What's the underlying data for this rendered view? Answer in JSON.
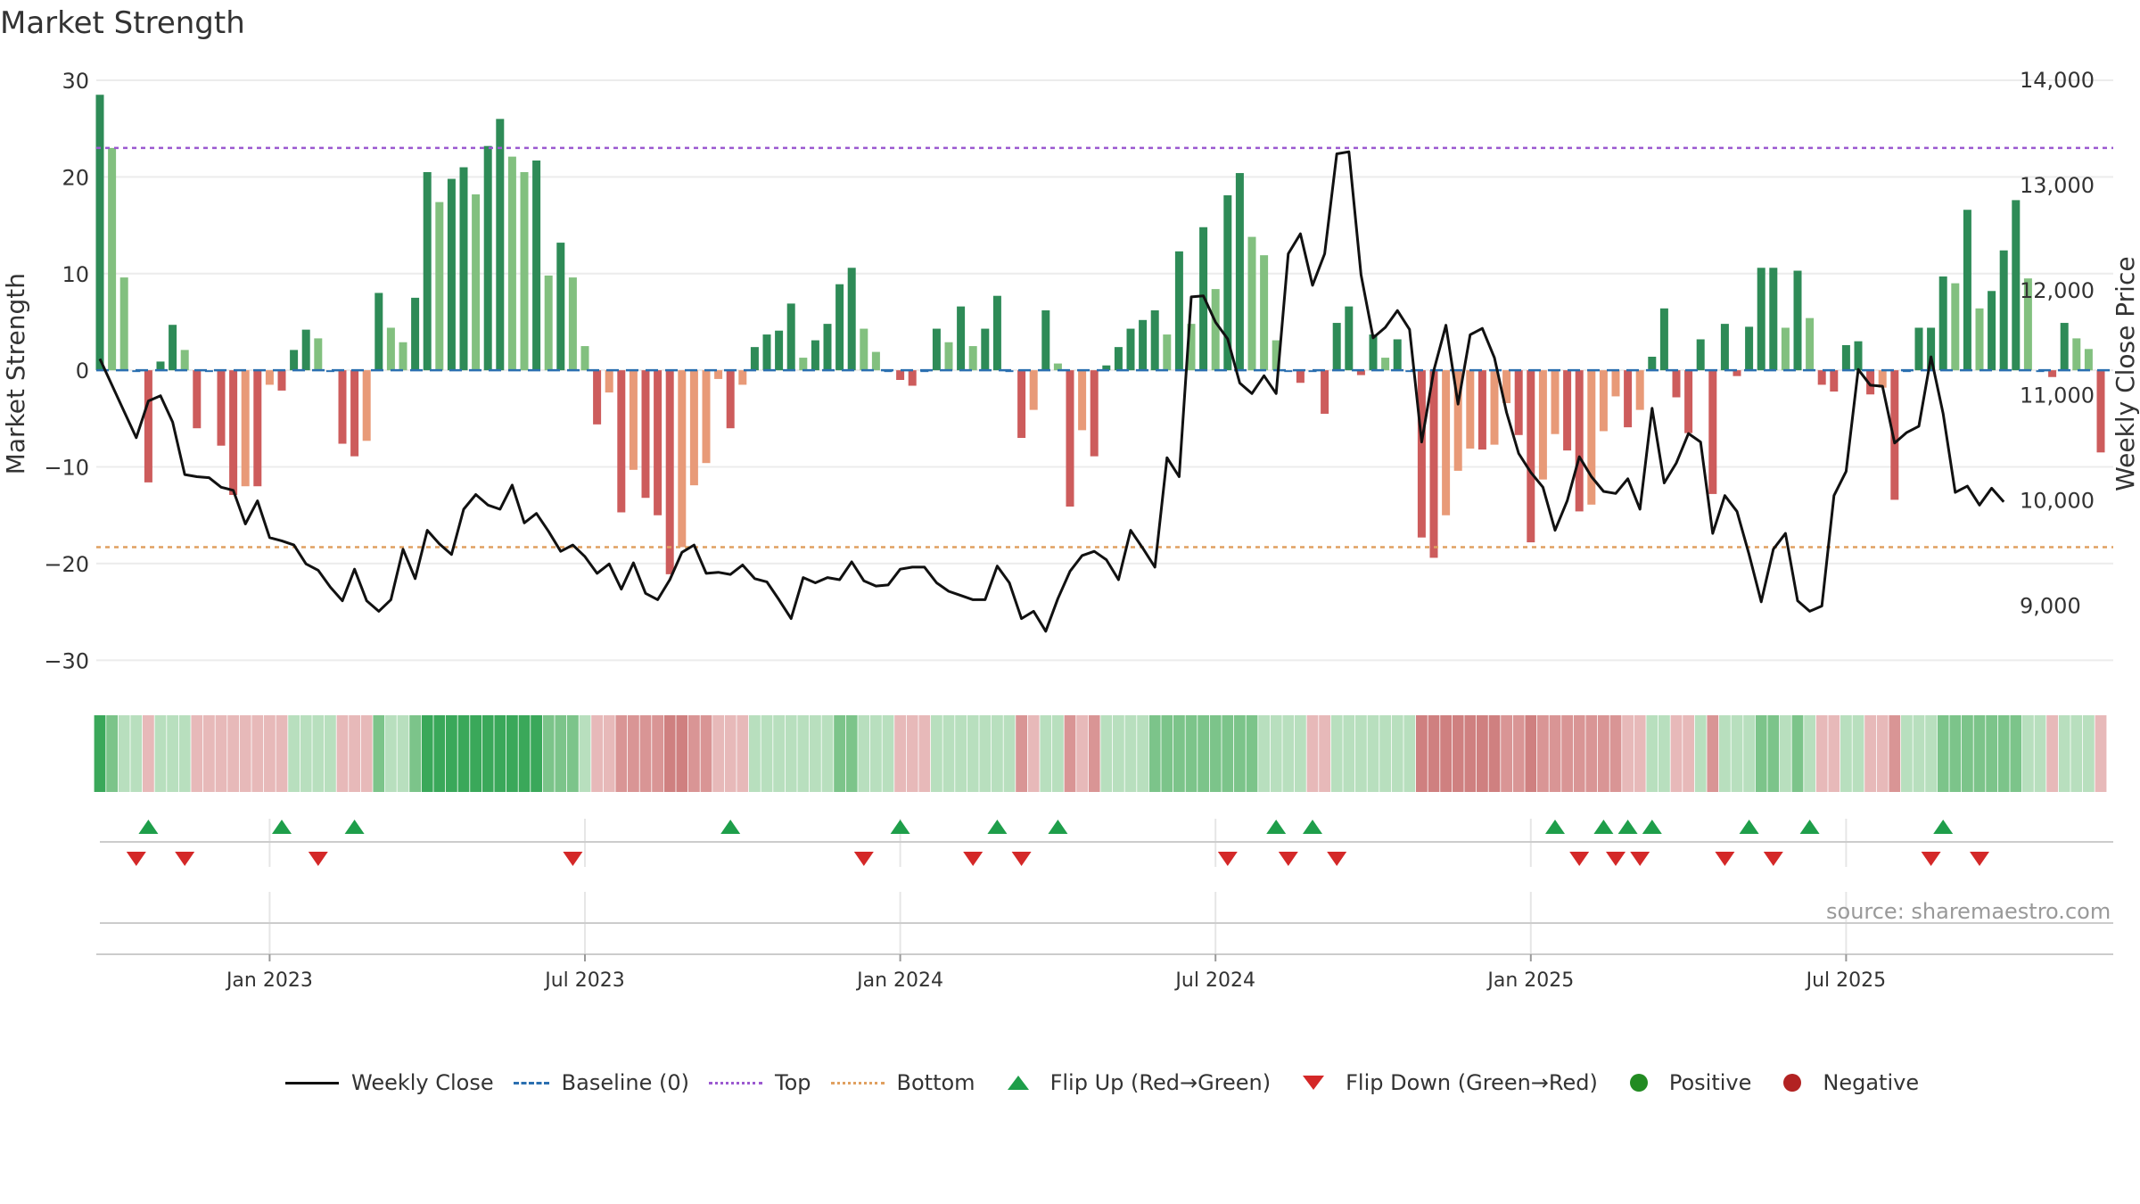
{
  "title": "Market Strength",
  "source": "source: sharemaestro.com",
  "colors": {
    "pos_strong": "#2e8b57",
    "pos_light": "#82c07f",
    "neg_strong": "#cd5c5c",
    "neg_light": "#e89a78",
    "price_line": "#111111",
    "baseline": "#2a6fb0",
    "top_line": "#9b59d0",
    "bottom_line": "#e0a060",
    "flip_up": "#1e9e4a",
    "flip_down": "#d42828",
    "positive_dot": "#228b22",
    "negative_dot": "#b22222"
  },
  "legend": [
    {
      "label": "Weekly Close",
      "kind": "line",
      "color_key": "price_line"
    },
    {
      "label": "Baseline (0)",
      "kind": "dash",
      "color_key": "baseline"
    },
    {
      "label": "Top",
      "kind": "dot",
      "color_key": "top_line"
    },
    {
      "label": "Bottom",
      "kind": "dot",
      "color_key": "bottom_line"
    },
    {
      "label": "Flip Up (Red→Green)",
      "kind": "tri-up",
      "color_key": "flip_up"
    },
    {
      "label": "Flip Down (Green→Red)",
      "kind": "tri-down",
      "color_key": "flip_down"
    },
    {
      "label": "Positive",
      "kind": "circle",
      "color_key": "positive_dot"
    },
    {
      "label": "Negative",
      "kind": "circle",
      "color_key": "negative_dot"
    }
  ],
  "chart_data": {
    "type": "bar",
    "ylabel": "Market Strength",
    "y2label": "Weekly Close Price",
    "ylim": [
      -32,
      30
    ],
    "y2lim": [
      8300,
      14000
    ],
    "y_ticks": [
      "30",
      "20",
      "10",
      "0",
      "−10",
      "−20",
      "−30"
    ],
    "y_tick_values": [
      30,
      20,
      10,
      0,
      -10,
      -20,
      -30
    ],
    "y2_ticks": [
      "14,000",
      "13,000",
      "12,000",
      "11,000",
      "10,000",
      "9,000"
    ],
    "y2_tick_values": [
      14000,
      13000,
      12000,
      11000,
      10000,
      9000
    ],
    "x_ticks": [
      "Jan 2023",
      "Jul 2023",
      "Jan 2024",
      "Jul 2024",
      "Jan 2025",
      "Jul 2025"
    ],
    "x_tick_weeks": [
      14,
      40,
      66,
      92,
      118,
      144
    ],
    "top_level": 23,
    "bottom_level": -18.3,
    "series": [
      {
        "name": "Market Strength",
        "values": [
          28.5,
          23,
          9.6,
          0,
          -11.6,
          0.9,
          4.7,
          2.1,
          -6,
          0,
          -7.8,
          -12.9,
          -12,
          -12,
          -1.5,
          -2.1,
          2.1,
          4.2,
          3.3,
          0,
          -7.6,
          -8.9,
          -7.3,
          8,
          4.4,
          2.9,
          7.5,
          20.5,
          17.4,
          19.8,
          21,
          18.2,
          23.2,
          26,
          22.1,
          20.5,
          21.7,
          9.8,
          13.2,
          9.6,
          2.5,
          -5.6,
          -2.3,
          -14.7,
          -10.3,
          -13.2,
          -15,
          -21.1,
          -18.3,
          -11.9,
          -9.6,
          -0.9,
          -6,
          -1.5,
          2.4,
          3.7,
          4.1,
          6.9,
          1.3,
          3.1,
          4.8,
          8.9,
          10.6,
          4.3,
          1.9,
          0,
          -1,
          -1.6,
          0,
          4.3,
          2.9,
          6.6,
          2.5,
          4.3,
          7.7,
          0,
          -7,
          -4.1,
          6.2,
          0.7,
          -14.1,
          -6.2,
          -8.9,
          0.5,
          2.4,
          4.3,
          5.2,
          6.2,
          3.7,
          12.3,
          4.8,
          14.8,
          8.4,
          18.1,
          20.4,
          13.8,
          11.9,
          3.1,
          0,
          -1.3,
          0,
          -4.5,
          4.9,
          6.6,
          -0.5,
          3.7,
          1.3,
          3.2,
          0,
          -17.3,
          -19.4,
          -15,
          -10.4,
          -8.1,
          -8.2,
          -7.7,
          -3.4,
          -6.7,
          -17.8,
          -11.3,
          -6.6,
          -8.3,
          -14.6,
          -13.9,
          -6.3,
          -2.7,
          -5.9,
          -4.1,
          1.4,
          6.4,
          -2.8,
          -6.5,
          3.2,
          -12.8,
          4.8,
          -0.6,
          4.5,
          10.6,
          10.6,
          4.4,
          10.3,
          5.4,
          -1.5,
          -2.2,
          2.6,
          3,
          -2.5,
          -1.8,
          -13.4,
          0,
          4.4,
          4.4,
          9.7,
          9,
          16.6,
          6.4,
          8.2,
          12.4,
          17.6,
          9.5,
          0,
          -0.7,
          4.9,
          3.3,
          2.2,
          -8.5
        ]
      },
      {
        "name": "Weekly Close",
        "values": [
          11350,
          11100,
          10850,
          10600,
          10950,
          11000,
          10750,
          10250,
          10230,
          10220,
          10130,
          10100,
          9780,
          10000,
          9650,
          9620,
          9580,
          9400,
          9340,
          9180,
          9050,
          9350,
          9050,
          8950,
          9060,
          9540,
          9260,
          9720,
          9590,
          9490,
          9920,
          10060,
          9960,
          9920,
          10150,
          9790,
          9880,
          9710,
          9520,
          9580,
          9470,
          9310,
          9400,
          9160,
          9410,
          9120,
          9060,
          9250,
          9510,
          9580,
          9310,
          9320,
          9300,
          9390,
          9260,
          9230,
          9060,
          8880,
          9270,
          9220,
          9270,
          9250,
          9420,
          9240,
          9190,
          9200,
          9350,
          9370,
          9370,
          9220,
          9140,
          9100,
          9060,
          9060,
          9380,
          9220,
          8880,
          8950,
          8760,
          9070,
          9330,
          9480,
          9520,
          9440,
          9250,
          9720,
          9550,
          9370,
          10410,
          10230,
          11940,
          11950,
          11700,
          11540,
          11120,
          11020,
          11190,
          11020,
          12350,
          12540,
          12050,
          12350,
          13300,
          13320,
          12150,
          11550,
          11650,
          11810,
          11630,
          10560,
          11240,
          11670,
          10920,
          11580,
          11640,
          11360,
          10840,
          10450,
          10270,
          10130,
          9720,
          10000,
          10420,
          10230,
          10090,
          10070,
          10210,
          9920,
          10880,
          10170,
          10360,
          10640,
          10560,
          9690,
          10050,
          9900,
          9490,
          9040,
          9540,
          9690,
          9050,
          8950,
          9000,
          10050,
          10280,
          11250,
          11100,
          11090,
          10550,
          10650,
          10710,
          11370,
          10830,
          10080,
          10140,
          9960,
          10120,
          9990
        ]
      }
    ],
    "strip_levels": [
      3,
      2,
      1,
      1,
      -1,
      1,
      1,
      1,
      -1,
      -1,
      -1,
      -1,
      -1,
      -1,
      -1,
      -1,
      1,
      1,
      1,
      1,
      -1,
      -1,
      -1,
      2,
      1,
      1,
      2,
      3,
      3,
      3,
      3,
      3,
      3,
      3,
      3,
      3,
      3,
      2,
      2,
      2,
      1,
      -1,
      -1,
      -2,
      -2,
      -2,
      -2,
      -3,
      -3,
      -2,
      -2,
      -1,
      -1,
      -1,
      1,
      1,
      1,
      1,
      1,
      1,
      1,
      2,
      2,
      1,
      1,
      1,
      -1,
      -1,
      -1,
      1,
      1,
      1,
      1,
      1,
      1,
      1,
      -2,
      -1,
      1,
      1,
      -2,
      -1,
      -2,
      1,
      1,
      1,
      1,
      2,
      2,
      2,
      2,
      2,
      2,
      2,
      2,
      2,
      1,
      1,
      1,
      1,
      -1,
      -1,
      1,
      1,
      1,
      1,
      1,
      1,
      1,
      -3,
      -3,
      -3,
      -3,
      -3,
      -3,
      -3,
      -2,
      -2,
      -3,
      -2,
      -2,
      -2,
      -2,
      -2,
      -2,
      -2,
      -1,
      -1,
      1,
      1,
      -1,
      -1,
      1,
      -2,
      1,
      1,
      1,
      2,
      2,
      1,
      2,
      1,
      -1,
      -1,
      1,
      1,
      -1,
      -1,
      -2,
      1,
      1,
      1,
      2,
      2,
      2,
      2,
      2,
      2,
      2,
      1,
      1,
      -1,
      1,
      1,
      1,
      -1
    ],
    "flip_up_weeks": [
      4,
      15,
      21,
      52,
      66,
      74,
      79,
      97,
      100,
      120,
      124,
      126,
      128,
      136,
      141,
      152
    ],
    "flip_down_weeks": [
      3,
      7,
      18,
      39,
      63,
      72,
      76,
      93,
      98,
      102,
      122,
      125,
      127,
      134,
      138,
      151,
      155
    ]
  }
}
